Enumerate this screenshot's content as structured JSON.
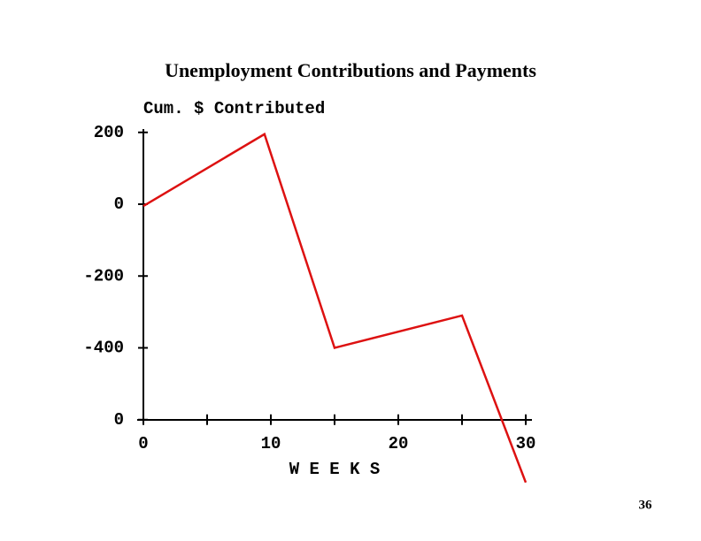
{
  "chart_data": {
    "type": "line",
    "title": "Unemployment Contributions and Payments",
    "y_label": "Cum. $ Contributed",
    "x_label": "W E E K S",
    "page_number": "36",
    "x": [
      0,
      9.5,
      15,
      25,
      30
    ],
    "series": [
      {
        "name": "Cum. $ Contributed",
        "color": "#dd1111",
        "values": [
          -5,
          195,
          -400,
          -310,
          -775
        ]
      }
    ],
    "xlim": [
      0,
      30
    ],
    "xticks": [
      0,
      10,
      20,
      30
    ],
    "ylim": [
      -600,
      200
    ],
    "yticks": [
      {
        "value": -600,
        "label": "0"
      },
      -400,
      -200,
      0,
      200
    ],
    "grid": false
  }
}
